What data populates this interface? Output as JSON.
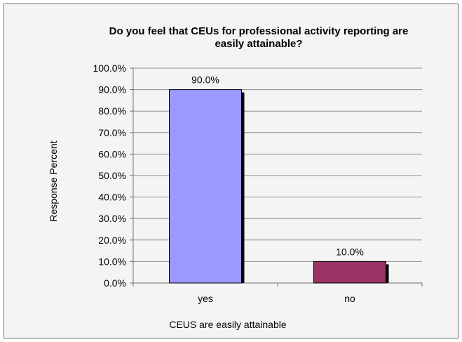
{
  "chart_data": {
    "type": "bar",
    "title_lines": [
      "Do you feel that CEUs for professional activity reporting are",
      "easily attainable?"
    ],
    "xlabel": "CEUS are easily attainable",
    "ylabel": "Response Percent",
    "categories": [
      "yes",
      "no"
    ],
    "values": [
      90.0,
      10.0
    ],
    "data_labels": [
      "90.0%",
      "10.0%"
    ],
    "bar_colors": [
      "#9999ff",
      "#993366"
    ],
    "shadow_color": "#000000",
    "ylim": [
      0,
      100
    ],
    "ytick_labels": [
      "0.0%",
      "10.0%",
      "20.0%",
      "30.0%",
      "40.0%",
      "50.0%",
      "60.0%",
      "70.0%",
      "80.0%",
      "90.0%",
      "100.0%"
    ],
    "grid": true,
    "legend": "none"
  }
}
